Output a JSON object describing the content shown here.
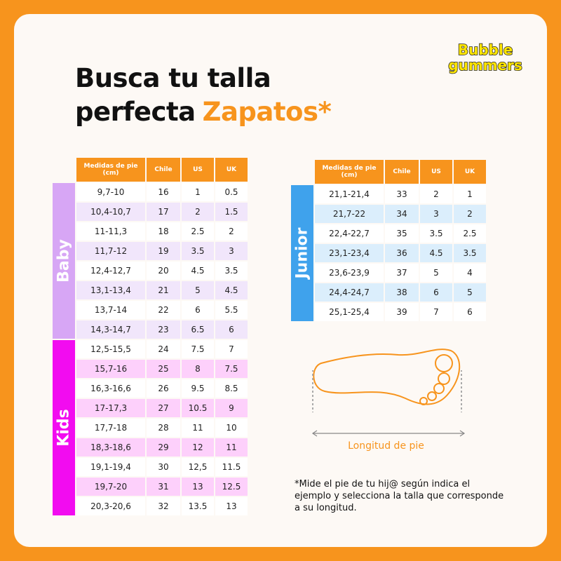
{
  "brand": {
    "logo_text_1": "Bubble",
    "logo_text_2": "gummers",
    "colors": {
      "accent": "#f7941d",
      "baby": "#d7a6f5",
      "kids": "#f20cf0",
      "junior": "#3fa2ec"
    }
  },
  "title": {
    "line1": "Busca tu talla",
    "line2": "perfecta",
    "accent": "Zapatos*"
  },
  "headers": [
    "Medidas de pie (cm)",
    "Chile",
    "US",
    "UK"
  ],
  "left_table": {
    "groups": [
      {
        "label": "Baby",
        "rows": [
          [
            "9,7-10",
            "16",
            "1",
            "0.5"
          ],
          [
            "10,4-10,7",
            "17",
            "2",
            "1.5"
          ],
          [
            "11-11,3",
            "18",
            "2.5",
            "2"
          ],
          [
            "11,7-12",
            "19",
            "3.5",
            "3"
          ],
          [
            "12,4-12,7",
            "20",
            "4.5",
            "3.5"
          ],
          [
            "13,1-13,4",
            "21",
            "5",
            "4.5"
          ],
          [
            "13,7-14",
            "22",
            "6",
            "5.5"
          ],
          [
            "14,3-14,7",
            "23",
            "6.5",
            "6"
          ]
        ]
      },
      {
        "label": "Kids",
        "rows": [
          [
            "12,5-15,5",
            "24",
            "7.5",
            "7"
          ],
          [
            "15,7-16",
            "25",
            "8",
            "7.5"
          ],
          [
            "16,3-16,6",
            "26",
            "9.5",
            "8.5"
          ],
          [
            "17-17,3",
            "27",
            "10.5",
            "9"
          ],
          [
            "17,7-18",
            "28",
            "11",
            "10"
          ],
          [
            "18,3-18,6",
            "29",
            "12",
            "11"
          ],
          [
            "19,1-19,4",
            "30",
            "12,5",
            "11.5"
          ],
          [
            "19,7-20",
            "31",
            "13",
            "12.5"
          ],
          [
            "20,3-20,6",
            "32",
            "13.5",
            "13"
          ]
        ]
      }
    ]
  },
  "right_table": {
    "groups": [
      {
        "label": "Junior",
        "rows": [
          [
            "21,1-21,4",
            "33",
            "2",
            "1"
          ],
          [
            "21,7-22",
            "34",
            "3",
            "2"
          ],
          [
            "22,4-22,7",
            "35",
            "3.5",
            "2.5"
          ],
          [
            "23,1-23,4",
            "36",
            "4.5",
            "3.5"
          ],
          [
            "23,6-23,9",
            "37",
            "5",
            "4"
          ],
          [
            "24,4-24,7",
            "38",
            "6",
            "5"
          ],
          [
            "25,1-25,4",
            "39",
            "7",
            "6"
          ]
        ]
      }
    ]
  },
  "diagram": {
    "label": "Longitud de pie"
  },
  "note": "*Mide el pie de tu hij@ según indica el ejemplo y selecciona la talla que corresponde a su longitud."
}
